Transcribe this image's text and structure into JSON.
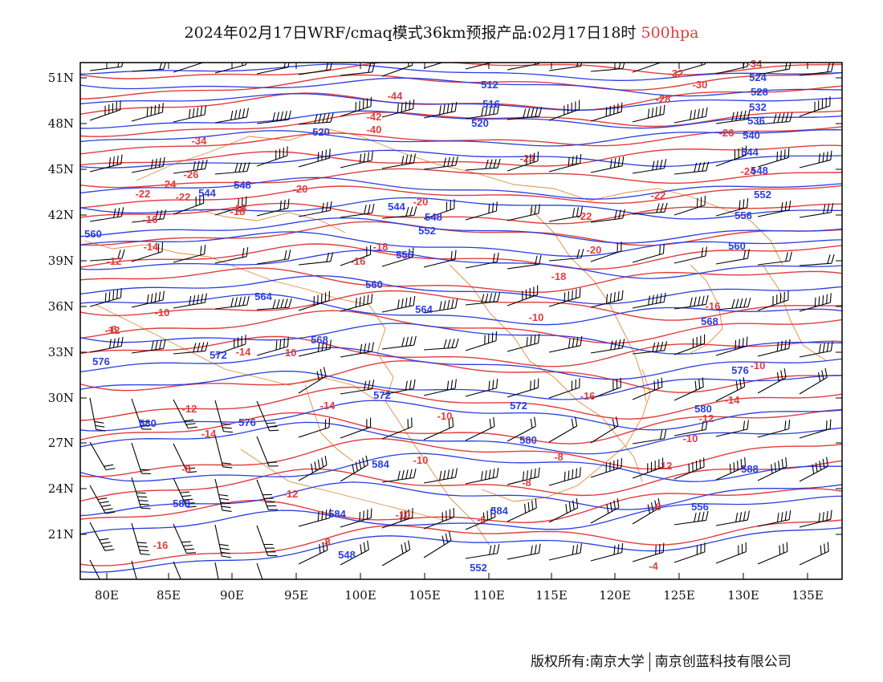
{
  "title": {
    "main": "2024年02月17日WRF/cmaq模式36km预报产品:02月17日18时",
    "level": "500hpa"
  },
  "axes": {
    "lon_labels": [
      "80E",
      "85E",
      "90E",
      "95E",
      "100E",
      "105E",
      "110E",
      "115E",
      "120E",
      "125E",
      "130E",
      "135E"
    ],
    "lat_labels": [
      "51N",
      "48N",
      "45N",
      "42N",
      "39N",
      "36N",
      "33N",
      "30N",
      "27N",
      "24N",
      "21N"
    ]
  },
  "colors": {
    "temperature": "#e23c3c",
    "geopotential": "#2a3ee0",
    "border": "#e08a3c",
    "wind": "#000000"
  },
  "temperature_labels": [
    "-34",
    "-32",
    "-30",
    "-28",
    "-44",
    "-42",
    "-40",
    "-34",
    "-24",
    "-26",
    "-26",
    "-24",
    "-22",
    "-24",
    "-22",
    "-20",
    "-22",
    "-20",
    "-18",
    "-18",
    "-16",
    "-14",
    "-12",
    "-22",
    "-20",
    "-18",
    "-18",
    "-16",
    "-16",
    "-10",
    "-10",
    "-12",
    "-10",
    "-14",
    "-14",
    "-10",
    "-10",
    "-16",
    "-14",
    "-12",
    "-10",
    "-12",
    "-8",
    "-12",
    "-10",
    "-8",
    "-10",
    "-8",
    "-6",
    "-6",
    "-4",
    "-16",
    "-14",
    "-12",
    "-8",
    "-6"
  ],
  "height_labels": [
    "512",
    "516",
    "520",
    "524",
    "528",
    "532",
    "536",
    "540",
    "544",
    "548",
    "552",
    "520",
    "544",
    "548",
    "544",
    "548",
    "552",
    "556",
    "560",
    "556",
    "560",
    "564",
    "560",
    "564",
    "568",
    "568",
    "572",
    "572",
    "572",
    "576",
    "576",
    "576",
    "580",
    "580",
    "580",
    "584",
    "584",
    "584",
    "588",
    "588",
    "548",
    "552",
    "556"
  ],
  "footer": {
    "left": "版权所有:南京大学",
    "right": "南京创蓝科技有限公司"
  }
}
